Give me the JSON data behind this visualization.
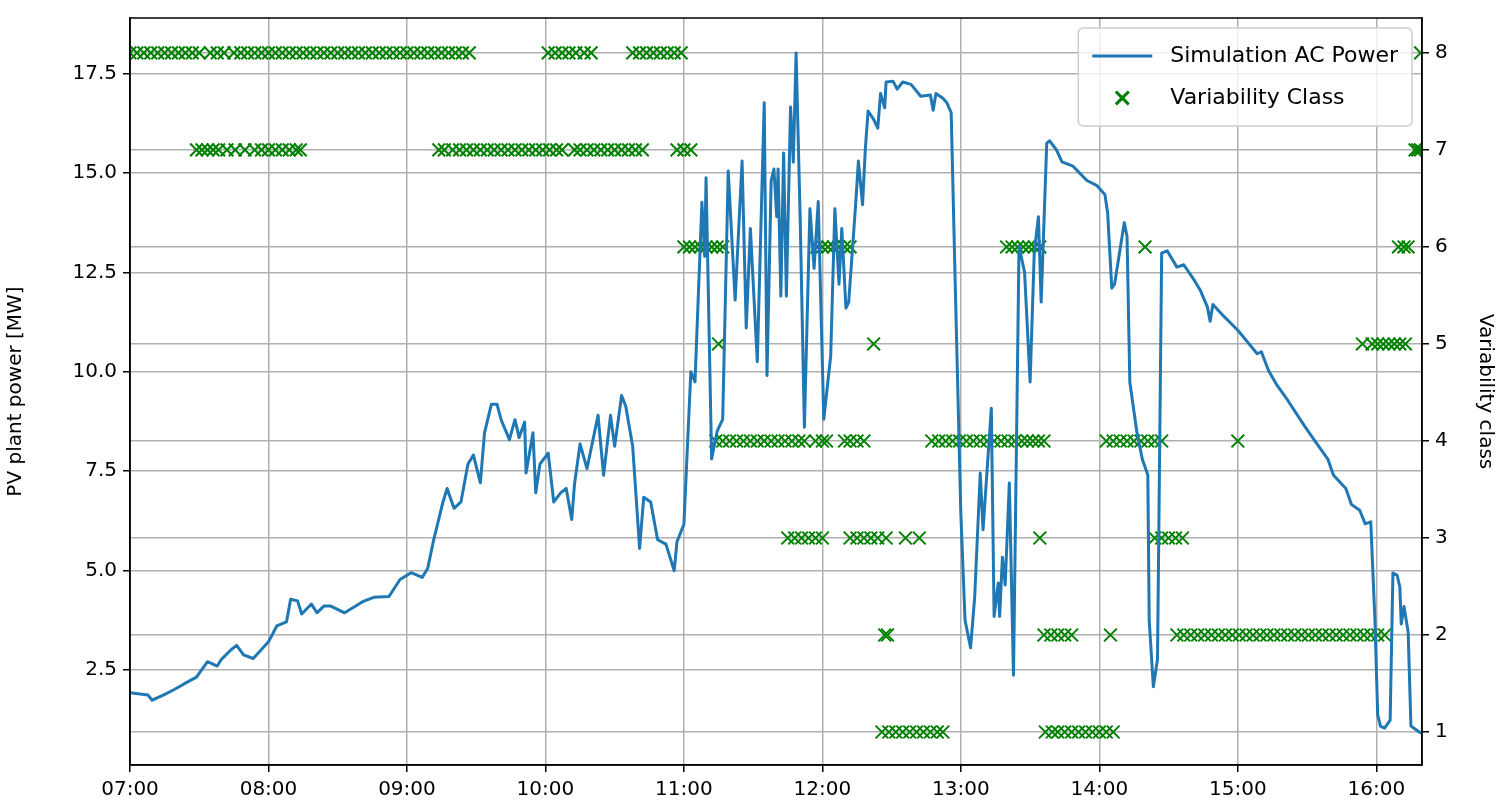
{
  "chart_data": {
    "type": "line",
    "ylabel": "PV plant power [MW]",
    "y2label": "Variability class",
    "xlim": [
      7,
      16.33
    ],
    "xticks": [
      {
        "value": 7,
        "label": "07:00"
      },
      {
        "value": 8,
        "label": "08:00"
      },
      {
        "value": 9,
        "label": "09:00"
      },
      {
        "value": 10,
        "label": "10:00"
      },
      {
        "value": 11,
        "label": "11:00"
      },
      {
        "value": 12,
        "label": "12:00"
      },
      {
        "value": 13,
        "label": "13:00"
      },
      {
        "value": 14,
        "label": "14:00"
      },
      {
        "value": 15,
        "label": "15:00"
      },
      {
        "value": 16,
        "label": "16:00"
      }
    ],
    "ylim": [
      0.1,
      18.9
    ],
    "yticks": [
      {
        "value": 2.5,
        "label": "2.5"
      },
      {
        "value": 5,
        "label": "5.0"
      },
      {
        "value": 7.5,
        "label": "7.5"
      },
      {
        "value": 10,
        "label": "10.0"
      },
      {
        "value": 12.5,
        "label": "12.5"
      },
      {
        "value": 15,
        "label": "15.0"
      },
      {
        "value": 17.5,
        "label": "17.5"
      }
    ],
    "y2lim": [
      0.66,
      8.36
    ],
    "y2ticks": [
      1,
      2,
      3,
      4,
      5,
      6,
      7,
      8
    ],
    "grid": true,
    "legend": "top right",
    "series": [
      {
        "name": "Simulation AC Power",
        "color": "#1f77b4",
        "marker": "none",
        "line_style": "solid",
        "x": [
          7.0,
          7.13,
          7.16,
          7.24,
          7.32,
          7.39,
          7.48,
          7.56,
          7.63,
          7.66,
          7.73,
          7.77,
          7.82,
          7.89,
          8.0,
          8.06,
          8.13,
          8.16,
          8.21,
          8.24,
          8.31,
          8.35,
          8.4,
          8.45,
          8.55,
          8.68,
          8.76,
          8.87,
          8.95,
          9.03,
          9.11,
          9.15,
          9.19,
          9.26,
          9.29,
          9.34,
          9.39,
          9.44,
          9.48,
          9.53,
          9.56,
          9.61,
          9.65,
          9.68,
          9.74,
          9.78,
          9.81,
          9.85,
          9.86,
          9.91,
          9.93,
          9.96,
          10.02,
          10.06,
          10.11,
          10.15,
          10.19,
          10.21,
          10.25,
          10.3,
          10.34,
          10.38,
          10.42,
          10.47,
          10.5,
          10.55,
          10.58,
          10.63,
          10.68,
          10.71,
          10.76,
          10.81,
          10.87,
          10.93,
          10.95,
          11.0,
          11.05,
          11.08,
          11.13,
          11.15,
          11.16,
          11.2,
          11.24,
          11.28,
          11.32,
          11.37,
          11.42,
          11.45,
          11.48,
          11.53,
          11.58,
          11.6,
          11.63,
          11.65,
          11.67,
          11.68,
          11.7,
          11.72,
          11.74,
          11.77,
          11.79,
          11.81,
          11.84,
          11.87,
          11.91,
          11.94,
          11.97,
          12.01,
          12.06,
          12.09,
          12.12,
          12.14,
          12.17,
          12.19,
          12.24,
          12.26,
          12.29,
          12.31,
          12.33,
          12.37,
          12.4,
          12.42,
          12.45,
          12.46,
          12.51,
          12.54,
          12.58,
          12.64,
          12.71,
          12.78,
          12.8,
          12.82,
          12.87,
          12.9,
          12.93,
          12.96,
          13.0,
          13.03,
          13.07,
          13.1,
          13.14,
          13.16,
          13.22,
          13.24,
          13.27,
          13.28,
          13.3,
          13.32,
          13.35,
          13.38,
          13.42,
          13.46,
          13.5,
          13.53,
          13.56,
          13.58,
          13.62,
          13.64,
          13.69,
          13.73,
          13.81,
          13.86,
          13.91,
          13.98,
          14.04,
          14.06,
          14.09,
          14.11,
          14.18,
          14.2,
          14.22,
          14.27,
          14.31,
          14.35,
          14.36,
          14.39,
          14.42,
          14.45,
          14.49,
          14.56,
          14.61,
          14.68,
          14.73,
          14.78,
          14.8,
          14.82,
          14.9,
          15.0,
          15.14,
          15.17,
          15.22,
          15.28,
          15.36,
          15.48,
          15.56,
          15.65,
          15.69,
          15.78,
          15.82,
          15.88,
          15.92,
          15.96,
          15.99,
          16.01,
          16.03,
          16.06,
          16.1,
          16.12,
          16.15,
          16.17,
          16.18,
          16.2,
          16.23,
          16.25,
          16.31,
          16.33
        ],
        "values": [
          1.92,
          1.86,
          1.73,
          1.86,
          2.0,
          2.14,
          2.31,
          2.7,
          2.59,
          2.76,
          3.0,
          3.11,
          2.87,
          2.78,
          3.2,
          3.6,
          3.7,
          4.27,
          4.23,
          3.9,
          4.15,
          3.93,
          4.1,
          4.1,
          3.93,
          4.21,
          4.32,
          4.34,
          4.77,
          4.94,
          4.82,
          5.05,
          5.72,
          6.72,
          7.06,
          6.56,
          6.72,
          7.67,
          7.9,
          7.2,
          8.46,
          9.18,
          9.18,
          8.79,
          8.29,
          8.79,
          8.34,
          8.73,
          7.45,
          8.46,
          6.95,
          7.67,
          7.95,
          6.72,
          6.95,
          7.06,
          6.28,
          7.17,
          8.18,
          7.56,
          8.23,
          8.9,
          7.39,
          8.9,
          8.12,
          9.4,
          9.13,
          8.12,
          5.55,
          6.84,
          6.72,
          5.77,
          5.66,
          4.99,
          5.72,
          6.16,
          10.0,
          9.74,
          14.26,
          12.9,
          14.88,
          7.8,
          8.5,
          8.8,
          15.05,
          11.8,
          15.3,
          11.1,
          13.6,
          10.25,
          16.77,
          9.9,
          14.8,
          15.1,
          13.9,
          15.1,
          11.9,
          15.5,
          11.9,
          16.66,
          15.27,
          18.02,
          13.8,
          8.6,
          14.1,
          12.6,
          14.28,
          8.8,
          10.4,
          14.1,
          12.2,
          13.6,
          11.6,
          11.75,
          14.2,
          15.3,
          14.2,
          15.6,
          16.56,
          16.35,
          16.13,
          17.0,
          16.64,
          17.29,
          17.31,
          17.11,
          17.29,
          17.23,
          16.93,
          16.96,
          16.58,
          17.0,
          16.88,
          16.76,
          16.52,
          12.1,
          6.41,
          3.75,
          3.05,
          4.34,
          7.45,
          6.02,
          9.08,
          3.84,
          4.68,
          3.84,
          5.33,
          4.63,
          7.2,
          2.36,
          13.16,
          12.5,
          9.74,
          13.0,
          13.9,
          11.75,
          15.75,
          15.81,
          15.58,
          15.28,
          15.17,
          14.99,
          14.81,
          14.69,
          14.46,
          13.99,
          12.1,
          12.2,
          13.75,
          13.4,
          9.74,
          8.5,
          7.8,
          7.4,
          3.75,
          2.07,
          2.76,
          12.98,
          13.04,
          12.63,
          12.69,
          12.33,
          12.04,
          11.63,
          11.27,
          11.69,
          11.39,
          11.04,
          10.45,
          10.5,
          10.04,
          9.67,
          9.28,
          8.64,
          8.24,
          7.8,
          7.4,
          7.06,
          6.66,
          6.51,
          6.17,
          6.22,
          3.75,
          1.37,
          1.08,
          1.03,
          1.23,
          4.93,
          4.88,
          4.58,
          3.65,
          4.09,
          3.45,
          1.08,
          0.93,
          0.9
        ]
      },
      {
        "name": "Variability Class",
        "type": "scatter",
        "color": "#008000",
        "marker": "cross",
        "axis": "y2",
        "x": [
          7.0,
          7.05,
          7.1,
          7.15,
          7.2,
          7.25,
          7.3,
          7.35,
          7.4,
          7.45,
          7.5,
          7.58,
          7.63,
          7.68,
          7.75,
          7.8,
          7.85,
          7.9,
          7.95,
          8.0,
          8.05,
          8.1,
          8.15,
          8.2,
          8.25,
          8.3,
          8.35,
          8.4,
          8.45,
          8.5,
          8.55,
          8.6,
          8.65,
          8.7,
          8.75,
          8.8,
          8.85,
          8.9,
          8.95,
          9.0,
          9.05,
          9.1,
          9.15,
          9.2,
          9.25,
          9.3,
          9.35,
          9.4,
          9.45,
          10.02,
          10.07,
          10.12,
          10.17,
          10.22,
          10.28,
          10.33,
          10.63,
          10.68,
          10.73,
          10.78,
          10.83,
          10.88,
          10.93,
          10.98,
          16.32,
          7.48,
          7.52,
          7.56,
          7.6,
          7.64,
          7.7,
          7.76,
          7.83,
          7.9,
          7.95,
          8.0,
          8.05,
          8.1,
          8.15,
          8.2,
          8.23,
          9.23,
          9.27,
          9.33,
          9.38,
          9.43,
          9.48,
          9.53,
          9.58,
          9.63,
          9.68,
          9.73,
          9.78,
          9.83,
          9.88,
          9.93,
          9.98,
          10.03,
          10.08,
          10.12,
          10.21,
          10.25,
          10.3,
          10.35,
          10.4,
          10.45,
          10.5,
          10.55,
          10.6,
          10.65,
          10.7,
          10.95,
          11.0,
          11.05,
          16.28,
          16.3,
          16.32,
          11.0,
          11.04,
          11.08,
          11.12,
          11.16,
          11.2,
          11.24,
          11.28,
          11.96,
          12.0,
          12.04,
          12.08,
          12.12,
          12.16,
          12.2,
          13.33,
          13.37,
          13.41,
          13.45,
          13.49,
          13.53,
          13.57,
          14.33,
          16.16,
          16.2,
          16.23,
          11.25,
          12.37,
          15.9,
          15.97,
          16.01,
          16.05,
          16.09,
          16.13,
          16.17,
          16.21,
          11.23,
          11.28,
          11.33,
          11.38,
          11.43,
          11.48,
          11.53,
          11.58,
          11.63,
          11.68,
          11.73,
          11.78,
          11.83,
          11.87,
          11.95,
          12.0,
          12.03,
          12.16,
          12.2,
          12.25,
          12.3,
          12.79,
          12.84,
          12.89,
          12.94,
          12.99,
          13.04,
          13.09,
          13.14,
          13.19,
          13.24,
          13.29,
          13.34,
          13.39,
          13.44,
          13.48,
          13.52,
          13.56,
          13.6,
          14.05,
          14.1,
          14.15,
          14.2,
          14.25,
          14.3,
          14.35,
          14.4,
          14.45,
          15.0,
          11.75,
          11.8,
          11.85,
          11.9,
          11.95,
          12.0,
          12.2,
          12.25,
          12.3,
          12.35,
          12.4,
          12.46,
          12.6,
          12.7,
          13.57,
          14.4,
          14.45,
          14.5,
          14.55,
          14.6,
          12.45,
          12.47,
          13.6,
          13.65,
          13.7,
          13.75,
          13.8,
          14.08,
          14.56,
          14.61,
          14.66,
          14.71,
          14.76,
          14.81,
          14.86,
          14.91,
          14.96,
          15.01,
          15.06,
          15.11,
          15.16,
          15.21,
          15.26,
          15.31,
          15.36,
          15.41,
          15.46,
          15.51,
          15.56,
          15.61,
          15.66,
          15.71,
          15.76,
          15.81,
          15.86,
          15.91,
          15.96,
          16.01,
          16.06,
          12.43,
          12.48,
          12.53,
          12.58,
          12.63,
          12.68,
          12.73,
          12.78,
          12.83,
          12.87,
          13.61,
          13.66,
          13.7,
          13.75,
          13.8,
          13.85,
          13.9,
          13.95,
          14.0,
          14.05,
          14.1
        ],
        "values": [
          8,
          8,
          8,
          8,
          8,
          8,
          8,
          8,
          8,
          8,
          8,
          8,
          8,
          8,
          8,
          8,
          8,
          8,
          8,
          8,
          8,
          8,
          8,
          8,
          8,
          8,
          8,
          8,
          8,
          8,
          8,
          8,
          8,
          8,
          8,
          8,
          8,
          8,
          8,
          8,
          8,
          8,
          8,
          8,
          8,
          8,
          8,
          8,
          8,
          8,
          8,
          8,
          8,
          8,
          8,
          8,
          8,
          8,
          8,
          8,
          8,
          8,
          8,
          8,
          8,
          7,
          7,
          7,
          7,
          7,
          7,
          7,
          7,
          7,
          7,
          7,
          7,
          7,
          7,
          7,
          7,
          7,
          7,
          7,
          7,
          7,
          7,
          7,
          7,
          7,
          7,
          7,
          7,
          7,
          7,
          7,
          7,
          7,
          7,
          7,
          7,
          7,
          7,
          7,
          7,
          7,
          7,
          7,
          7,
          7,
          7,
          7,
          7,
          7,
          7,
          7,
          7,
          6,
          6,
          6,
          6,
          6,
          6,
          6,
          6,
          6,
          6,
          6,
          6,
          6,
          6,
          6,
          6,
          6,
          6,
          6,
          6,
          6,
          6,
          6,
          6,
          6,
          6,
          5,
          5,
          5,
          5,
          5,
          5,
          5,
          5,
          5,
          5,
          4,
          4,
          4,
          4,
          4,
          4,
          4,
          4,
          4,
          4,
          4,
          4,
          4,
          4,
          4,
          4,
          4,
          4,
          4,
          4,
          4,
          4,
          4,
          4,
          4,
          4,
          4,
          4,
          4,
          4,
          4,
          4,
          4,
          4,
          4,
          4,
          4,
          4,
          4,
          4,
          4,
          4,
          4,
          4,
          4,
          4,
          4,
          4,
          4,
          3,
          3,
          3,
          3,
          3,
          3,
          3,
          3,
          3,
          3,
          3,
          3,
          3,
          3,
          3,
          3,
          3,
          3,
          3,
          3,
          2,
          2,
          2,
          2,
          2,
          2,
          2,
          2,
          2,
          2,
          2,
          2,
          2,
          2,
          2,
          2,
          2,
          2,
          2,
          2,
          2,
          2,
          2,
          2,
          2,
          2,
          2,
          2,
          2,
          2,
          2,
          2,
          2,
          2,
          2,
          2,
          2,
          2,
          2,
          1,
          1,
          1,
          1,
          1,
          1,
          1,
          1,
          1,
          1,
          1,
          1,
          1,
          1,
          1,
          1,
          1,
          1,
          1,
          1,
          1
        ]
      }
    ]
  }
}
